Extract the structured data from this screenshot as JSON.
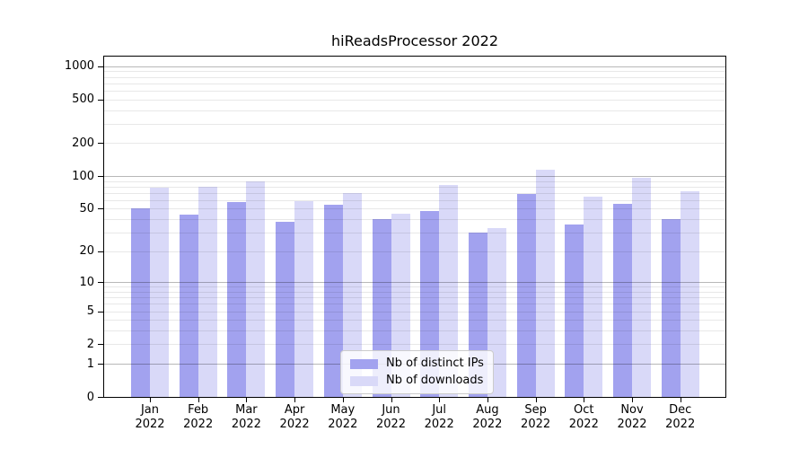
{
  "chart": {
    "title": "hiReadsProcessor 2022"
  },
  "chart_data": {
    "type": "bar",
    "title": "hiReadsProcessor 2022",
    "xlabel": "",
    "ylabel": "",
    "yscale": "log-like (log10 of value+1), labeled ticks down to 0",
    "ylim": [
      0,
      1230
    ],
    "grid": "major and minor horizontal gridlines, drawn over bars",
    "legend_position": "lower center",
    "categories": [
      "Jan 2022",
      "Feb 2022",
      "Mar 2022",
      "Apr 2022",
      "May 2022",
      "Jun 2022",
      "Jul 2022",
      "Aug 2022",
      "Sep 2022",
      "Oct 2022",
      "Nov 2022",
      "Dec 2022"
    ],
    "y_tick_values": [
      1000,
      500,
      200,
      100,
      50,
      20,
      10,
      5,
      2,
      1,
      0
    ],
    "y_major_values": [
      1,
      10,
      100,
      1000
    ],
    "series": [
      {
        "name": "Nb of distinct IPs",
        "color": "#a2a2ef",
        "values": [
          50,
          44,
          58,
          38,
          54,
          40,
          48,
          30,
          69,
          36,
          56,
          40
        ]
      },
      {
        "name": "Nb of downloads",
        "color": "#d9d9f8",
        "values": [
          78,
          79,
          89,
          59,
          70,
          45,
          83,
          33,
          114,
          65,
          97,
          72
        ]
      }
    ]
  },
  "colors": {
    "bar_distinct_ips": "#a2a2ef",
    "bar_downloads": "#d9d9f8",
    "spine": "#000000",
    "background": "#ffffff"
  }
}
